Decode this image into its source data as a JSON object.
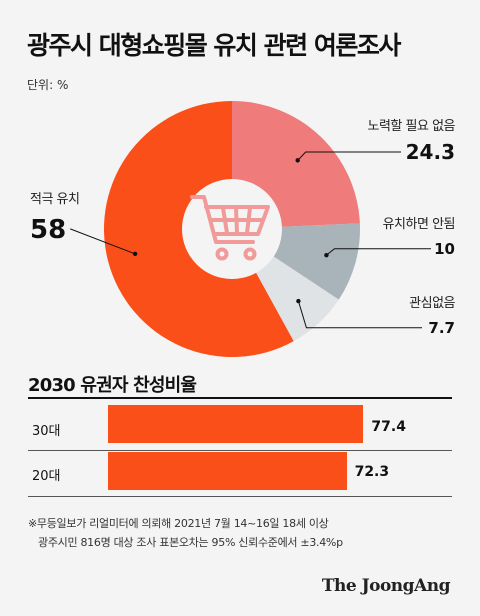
{
  "title": "광주시 대형쇼핑몰 유치 관련 여론조사",
  "unit": "단위: %",
  "chart_data": [
    {
      "type": "pie",
      "labels": [
        "노력할 필요 없음",
        "유치하면 안됨",
        "관심없음",
        "적극 유치"
      ],
      "values": [
        24.3,
        10,
        7.7,
        58
      ],
      "value_labels": [
        "24.3",
        "10",
        "7.7",
        "58"
      ],
      "colors": [
        "#ef7b7b",
        "#a9b3ba",
        "#dfe3e6",
        "#fb4f19"
      ],
      "center_icon": "shopping-cart-icon"
    },
    {
      "type": "bar",
      "title": "2030 유권자 찬성비율",
      "categories": [
        "30대",
        "20대"
      ],
      "values": [
        77.4,
        72.3
      ],
      "value_labels": [
        "77.4",
        "72.3"
      ],
      "color": "#fb4f19"
    }
  ],
  "footnote": {
    "line1": "※무등일보가 리얼미터에 의뢰해 2021년 7월 14~16일 18세 이상",
    "line2": "광주시민 816명 대상 조사 표본오차는 95% 신뢰수준에서 ±3.4%p"
  },
  "brand": "The JoongAng"
}
